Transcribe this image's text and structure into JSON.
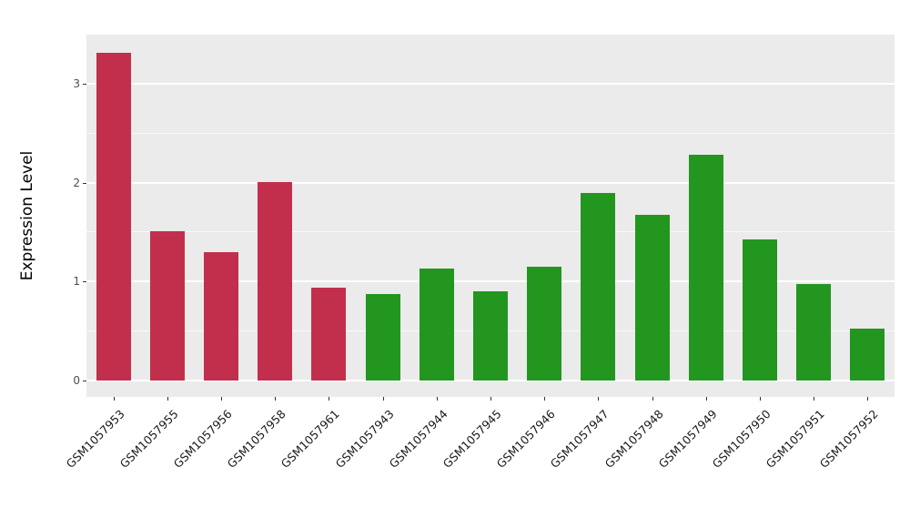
{
  "chart_data": {
    "type": "bar",
    "title": "",
    "xlabel": "",
    "ylabel": "Expression Level",
    "categories": [
      "GSM1057953",
      "GSM1057955",
      "GSM1057956",
      "GSM1057958",
      "GSM1057961",
      "GSM1057943",
      "GSM1057944",
      "GSM1057945",
      "GSM1057946",
      "GSM1057947",
      "GSM1057948",
      "GSM1057949",
      "GSM1057950",
      "GSM1057951",
      "GSM1057952"
    ],
    "values": [
      3.32,
      1.51,
      1.3,
      2.01,
      0.94,
      0.87,
      1.13,
      0.9,
      1.15,
      1.9,
      1.67,
      2.28,
      1.43,
      0.97,
      0.52
    ],
    "bar_colors": [
      "#C22F4C",
      "#C22F4C",
      "#C22F4C",
      "#C22F4C",
      "#C22F4C",
      "#22961F",
      "#22961F",
      "#22961F",
      "#22961F",
      "#22961F",
      "#22961F",
      "#22961F",
      "#22961F",
      "#22961F",
      "#22961F"
    ],
    "group_palette": {
      "red": "#C22F4C",
      "green": "#22961F"
    },
    "yticks": [
      0,
      1,
      2,
      3
    ],
    "minor_gridlines": [
      0.5,
      1.5,
      2.5
    ],
    "ylim": [
      -0.17,
      3.5
    ],
    "grid": "on",
    "legend": "none",
    "panel_background": "#EBEBEB",
    "gridline_color": "#ffffff"
  }
}
